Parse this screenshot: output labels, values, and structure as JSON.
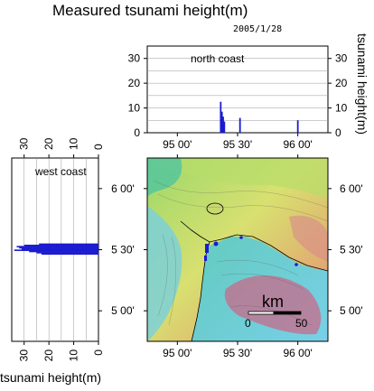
{
  "title": "Measured tsunami height(m)",
  "date": "2005/1/28",
  "colors": {
    "bar": "#1b1bd0",
    "frame": "#000000",
    "grid": "#9a9a9a",
    "sea": "#6ac8d6",
    "lowland": "#d8e070",
    "highland": "#c84a6a"
  },
  "chart_data": [
    {
      "type": "bar",
      "panel": "north coast",
      "ylabel": "tsunami height(m)",
      "ylim": [
        0,
        35
      ],
      "yticks": [
        "0",
        "10",
        "20",
        "30"
      ],
      "xticks": [
        "95 00'",
        "95 30'",
        "96 00'"
      ],
      "x_tick_values": [
        95.0,
        95.5,
        96.0
      ],
      "xlim": [
        94.75,
        96.25
      ],
      "x": [
        95.36,
        95.37,
        95.38,
        95.39,
        95.52,
        96.0
      ],
      "values": [
        12.5,
        8.5,
        6.5,
        4.5,
        6.0,
        5.0
      ]
    },
    {
      "type": "bar",
      "orientation": "horizontal",
      "panel": "west coast",
      "xlabel": "tsunami height(m)",
      "xlim": [
        0,
        35
      ],
      "xticks": [
        "0",
        "10",
        "20",
        "30"
      ],
      "yticks": [
        "5 00'",
        "5 30'",
        "6 00'"
      ],
      "y_tick_values": [
        5.0,
        5.5,
        6.0
      ],
      "ylim": [
        4.75,
        6.25
      ],
      "y": [
        5.545,
        5.535,
        5.525,
        5.515,
        5.505,
        5.495,
        5.485,
        5.475,
        5.465
      ],
      "values": [
        24,
        30,
        33,
        32,
        31,
        34,
        28,
        25,
        23
      ]
    }
  ],
  "map": {
    "xticks": [
      "95 00'",
      "95 30'",
      "96 00'"
    ],
    "yticks": [
      "5 00'",
      "5 30'",
      "6 00'"
    ],
    "scale_label": "km",
    "scale_ticks": [
      "0",
      "50"
    ]
  }
}
